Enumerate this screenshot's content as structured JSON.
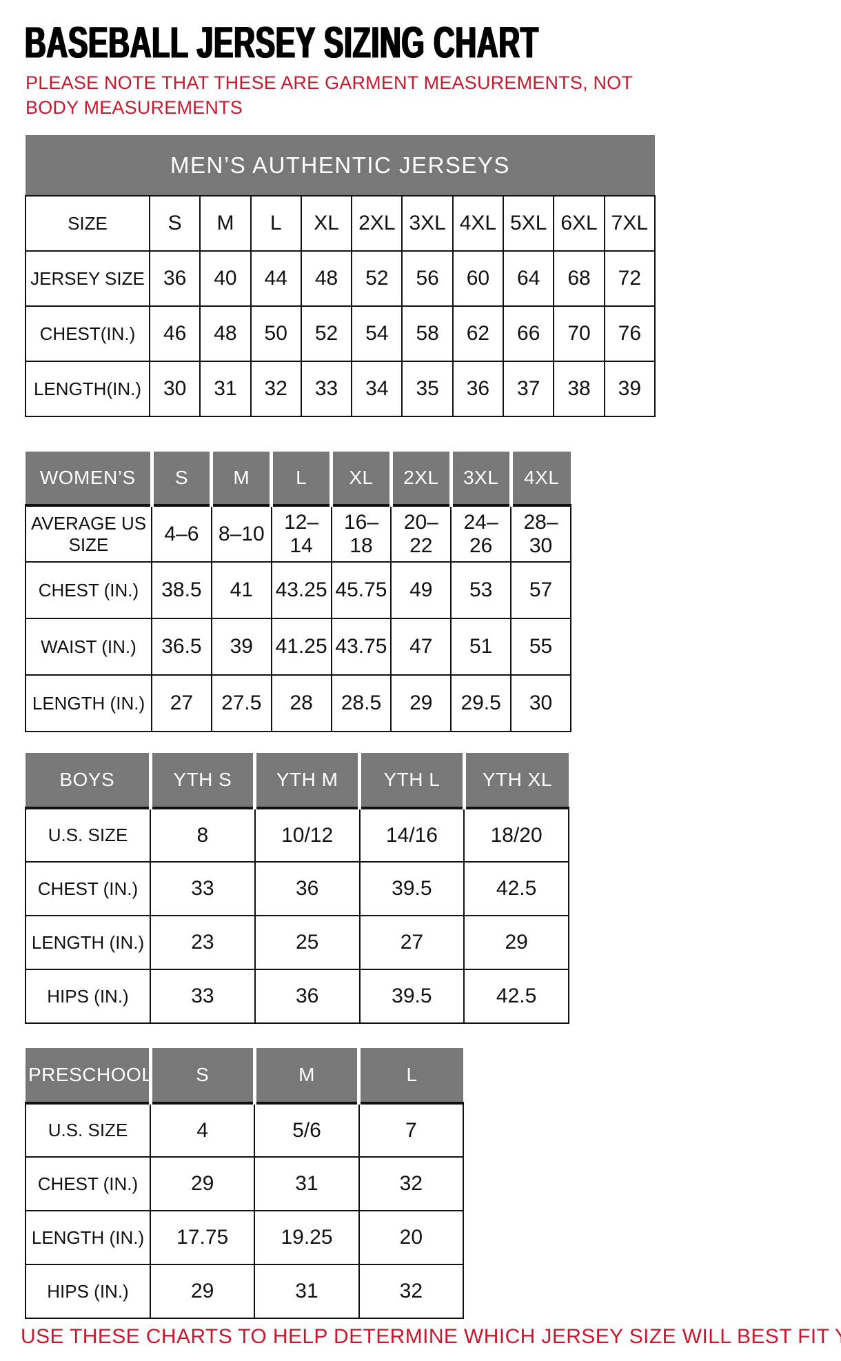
{
  "page": {
    "title": "BASEBALL JERSEY SIZING CHART",
    "note": "PLEASE NOTE THAT THESE ARE GARMENT MEASUREMENTS, NOT BODY MEASUREMENTS",
    "footer": "USE THESE CHARTS TO HELP DETERMINE WHICH JERSEY SIZE WILL BEST FIT YOU.",
    "colors": {
      "accent_red": "#C9182C",
      "header_gray": "#787878",
      "border_black": "#111111"
    }
  },
  "tables": {
    "mens": {
      "band_title": "MEN’S AUTHENTIC JERSEYS",
      "header": [
        "SIZE",
        "S",
        "M",
        "L",
        "XL",
        "2XL",
        "3XL",
        "4XL",
        "5XL",
        "6XL",
        "7XL"
      ],
      "rows": [
        [
          "JERSEY SIZE",
          "36",
          "40",
          "44",
          "48",
          "52",
          "56",
          "60",
          "64",
          "68",
          "72"
        ],
        [
          "CHEST(IN.)",
          "46",
          "48",
          "50",
          "52",
          "54",
          "58",
          "62",
          "66",
          "70",
          "76"
        ],
        [
          "LENGTH(IN.)",
          "30",
          "31",
          "32",
          "33",
          "34",
          "35",
          "36",
          "37",
          "38",
          "39"
        ]
      ]
    },
    "womens": {
      "gray_header": true,
      "header": [
        "WOMEN’S",
        "S",
        "M",
        "L",
        "XL",
        "2XL",
        "3XL",
        "4XL"
      ],
      "rows": [
        [
          "AVERAGE US SIZE",
          "4–6",
          "8–10",
          "12–14",
          "16–18",
          "20–22",
          "24–26",
          "28–30"
        ],
        [
          "CHEST (IN.)",
          "38.5",
          "41",
          "43.25",
          "45.75",
          "49",
          "53",
          "57"
        ],
        [
          "WAIST (IN.)",
          "36.5",
          "39",
          "41.25",
          "43.75",
          "47",
          "51",
          "55"
        ],
        [
          "LENGTH (IN.)",
          "27",
          "27.5",
          "28",
          "28.5",
          "29",
          "29.5",
          "30"
        ]
      ]
    },
    "boys": {
      "gray_header": true,
      "header": [
        "BOYS",
        "YTH S",
        "YTH M",
        "YTH L",
        "YTH XL"
      ],
      "rows": [
        [
          "U.S. SIZE",
          "8",
          "10/12",
          "14/16",
          "18/20"
        ],
        [
          "CHEST (IN.)",
          "33",
          "36",
          "39.5",
          "42.5"
        ],
        [
          "LENGTH (IN.)",
          "23",
          "25",
          "27",
          "29"
        ],
        [
          "HIPS (IN.)",
          "33",
          "36",
          "39.5",
          "42.5"
        ]
      ]
    },
    "preschool": {
      "gray_header": true,
      "header": [
        "PRESCHOOL",
        "S",
        "M",
        "L"
      ],
      "rows": [
        [
          "U.S. SIZE",
          "4",
          "5/6",
          "7"
        ],
        [
          "CHEST (IN.)",
          "29",
          "31",
          "32"
        ],
        [
          "LENGTH (IN.)",
          "17.75",
          "19.25",
          "20"
        ],
        [
          "HIPS (IN.)",
          "29",
          "31",
          "32"
        ]
      ]
    }
  }
}
